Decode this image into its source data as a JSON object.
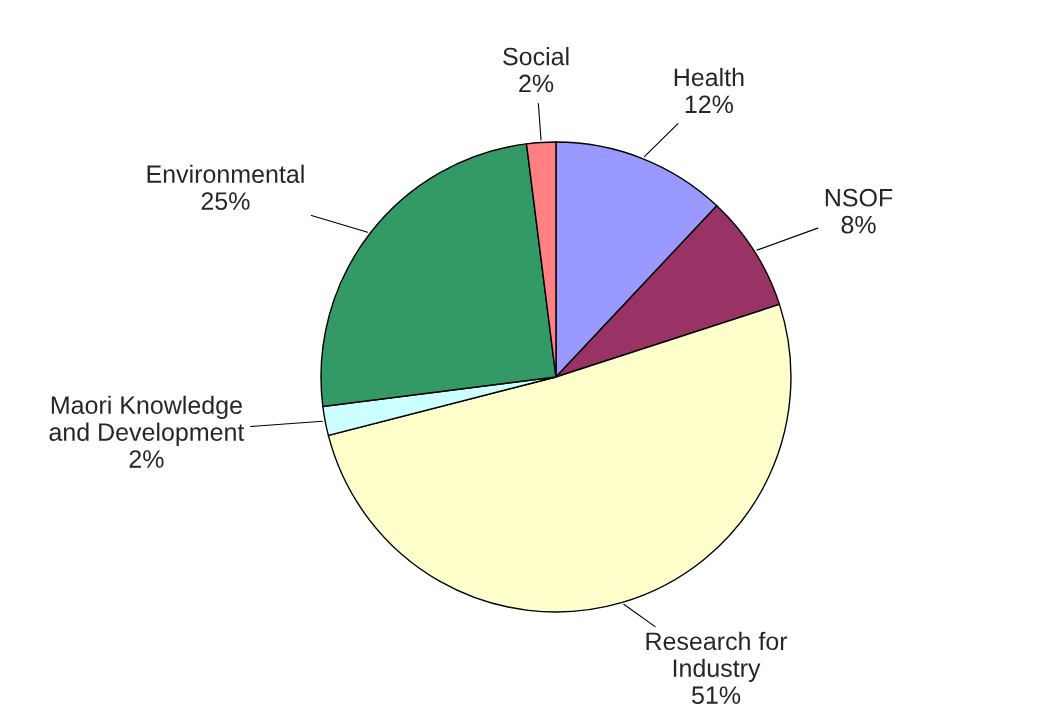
{
  "chart_data": {
    "type": "pie",
    "categories": [
      "Health",
      "NSOF",
      "Research for\nIndustry",
      "Maori Knowledge\nand Development",
      "Environmental",
      "Social"
    ],
    "values": [
      12,
      8,
      51,
      2,
      25,
      2
    ],
    "colors": [
      "#9999ff",
      "#993366",
      "#ffffcc",
      "#ccffff",
      "#339966",
      "#ff8080"
    ],
    "value_labels": [
      "12%",
      "8%",
      "51%",
      "2%",
      "25%",
      "2%"
    ],
    "legend": false
  }
}
